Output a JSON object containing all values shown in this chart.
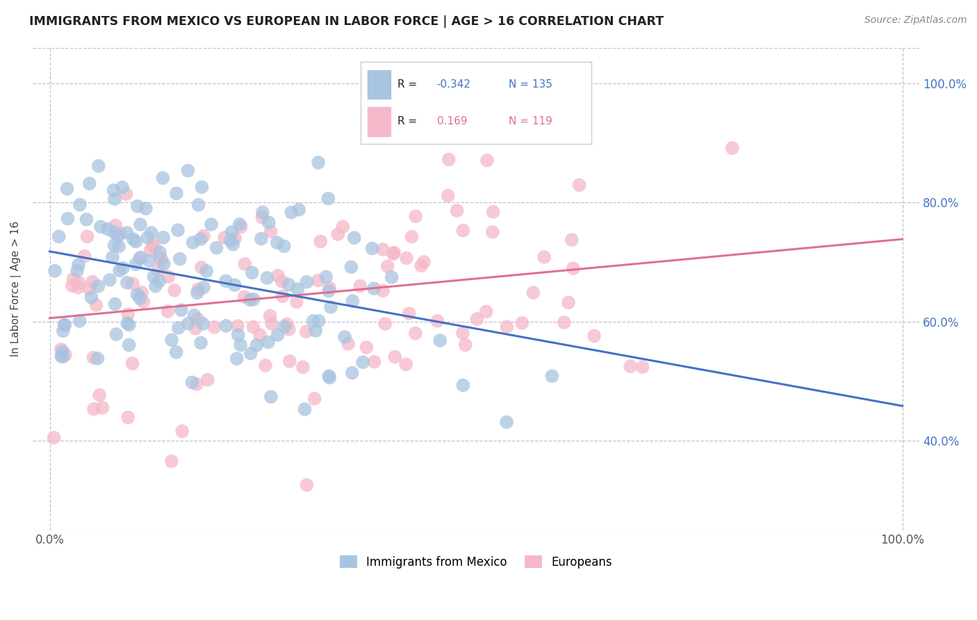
{
  "title": "IMMIGRANTS FROM MEXICO VS EUROPEAN IN LABOR FORCE | AGE > 16 CORRELATION CHART",
  "source": "Source: ZipAtlas.com",
  "ylabel": "In Labor Force | Age > 16",
  "legend_label1": "Immigrants from Mexico",
  "legend_label2": "Europeans",
  "color_mexico": "#a8c4e0",
  "color_europe": "#f4b8c8",
  "color_mexico_line": "#4472c4",
  "color_europe_line": "#e07090",
  "color_mexico_text": "#4472c4",
  "color_europe_text": "#e07090",
  "background_color": "#ffffff",
  "grid_color": "#c0c0d0",
  "title_color": "#222222",
  "source_color": "#888888",
  "right_axis_color": "#4472c4",
  "N_mexico": 135,
  "N_europe": 119,
  "R_mexico": -0.342,
  "R_europe": 0.169,
  "seed_mexico": 7,
  "seed_europe": 13,
  "ylim_low": 0.25,
  "ylim_high": 1.06,
  "xlim_low": -0.02,
  "xlim_high": 1.02
}
